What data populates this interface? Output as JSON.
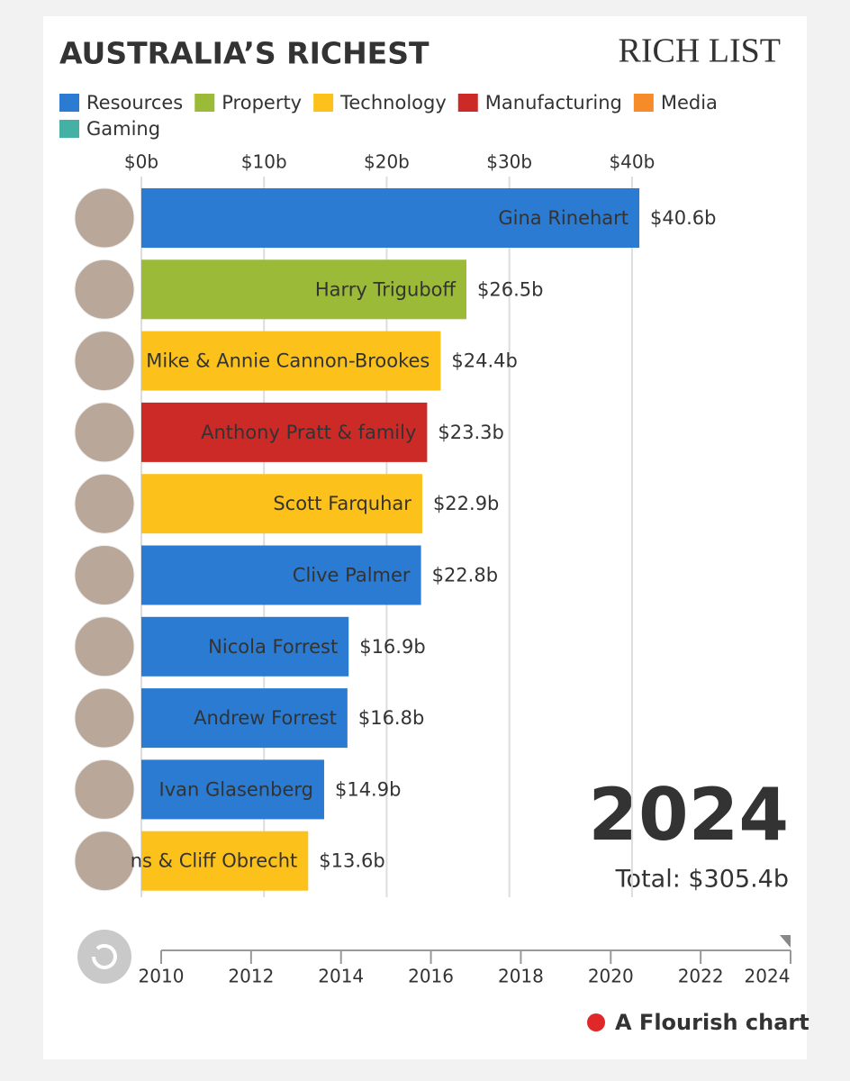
{
  "chart_data": {
    "type": "bar",
    "title": "AUSTRALIA’S RICHEST",
    "logo": "RICH LIST",
    "legend": [
      {
        "name": "Resources",
        "color": "#2a7bd1"
      },
      {
        "name": "Property",
        "color": "#9aba38"
      },
      {
        "name": "Technology",
        "color": "#fcc21b"
      },
      {
        "name": "Manufacturing",
        "color": "#cc2a27"
      },
      {
        "name": "Media",
        "color": "#f68b2a"
      },
      {
        "name": "Gaming",
        "color": "#45b0a5"
      }
    ],
    "categories": [
      "Gina Rinehart",
      "Harry Triguboff",
      "Mike & Annie Cannon-Brookes",
      "Anthony Pratt & family",
      "Scott Farquhar",
      "Clive Palmer",
      "Nicola Forrest",
      "Andrew Forrest",
      "Ivan Glasenberg",
      "ns & Cliff Obrecht"
    ],
    "values": [
      40.6,
      26.5,
      24.4,
      23.3,
      22.9,
      22.8,
      16.9,
      16.8,
      14.9,
      13.6
    ],
    "value_labels": [
      "$40.6b",
      "$26.5b",
      "$24.4b",
      "$23.3b",
      "$22.9b",
      "$22.8b",
      "$16.9b",
      "$16.8b",
      "$14.9b",
      "$13.6b"
    ],
    "colors": [
      "#2a7bd1",
      "#9aba38",
      "#fcc21b",
      "#cc2a27",
      "#fcc21b",
      "#2a7bd1",
      "#2a7bd1",
      "#2a7bd1",
      "#2a7bd1",
      "#fcc21b"
    ],
    "xlim": [
      0,
      45
    ],
    "xticks": [
      {
        "value": 0,
        "label": "$0b"
      },
      {
        "value": 10,
        "label": "$10b"
      },
      {
        "value": 20,
        "label": "$20b"
      },
      {
        "value": 30,
        "label": "$30b"
      },
      {
        "value": 40,
        "label": "$40b"
      }
    ],
    "grid": true,
    "year": "2024",
    "total": "Total: $305.4b",
    "timeline": {
      "xlim": [
        2010,
        2024
      ],
      "xticks": [
        2010,
        2012,
        2014,
        2016,
        2018,
        2020,
        2022,
        2024
      ]
    },
    "credit": "A Flourish chart"
  }
}
